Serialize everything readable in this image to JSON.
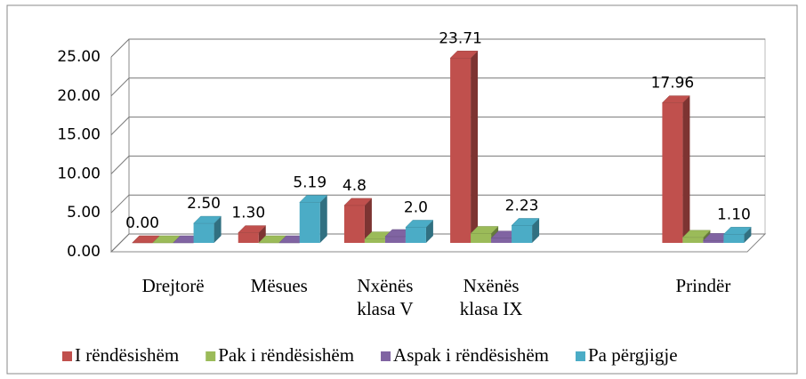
{
  "chart_data": {
    "type": "bar3d",
    "categories": [
      [
        "Drejtorë"
      ],
      [
        "Mësues"
      ],
      [
        "Nxënës",
        "klasa V"
      ],
      [
        "Nxënës",
        "klasa IX"
      ],
      null,
      [
        "Prindër"
      ]
    ],
    "series": [
      {
        "name": "I rëndësishëm",
        "color": "#c0504d",
        "values": [
          0,
          1.3,
          4.8,
          23.71,
          null,
          17.96
        ],
        "value_labels": [
          "0.00",
          "1.30",
          "4.8",
          "23.71",
          null,
          "17.96"
        ]
      },
      {
        "name": "Pak i rëndësishëm",
        "color": "#9bbb59",
        "values": [
          0,
          0,
          0.5,
          1.2,
          null,
          0.7
        ]
      },
      {
        "name": "Aspak i rëndësishëm",
        "color": "#8064a2",
        "values": [
          0,
          0,
          0.8,
          0.6,
          null,
          0.3
        ]
      },
      {
        "name": "Pa përgjigje",
        "color": "#4bacc6",
        "values": [
          2.5,
          5.19,
          2.0,
          2.23,
          null,
          1.1
        ],
        "value_labels": [
          "2.50",
          "5.19",
          "2.0",
          "2.23",
          null,
          "1.10"
        ]
      }
    ],
    "ylim": [
      0,
      25
    ],
    "yticks": [
      {
        "value": 0,
        "label": "0.00"
      },
      {
        "value": 5,
        "label": "5.00"
      },
      {
        "value": 10,
        "label": "10.00"
      },
      {
        "value": 15,
        "label": "15.00"
      },
      {
        "value": 20,
        "label": "20.00"
      },
      {
        "value": 25,
        "label": "25.00"
      }
    ],
    "grid": true,
    "legend": "bottom"
  }
}
